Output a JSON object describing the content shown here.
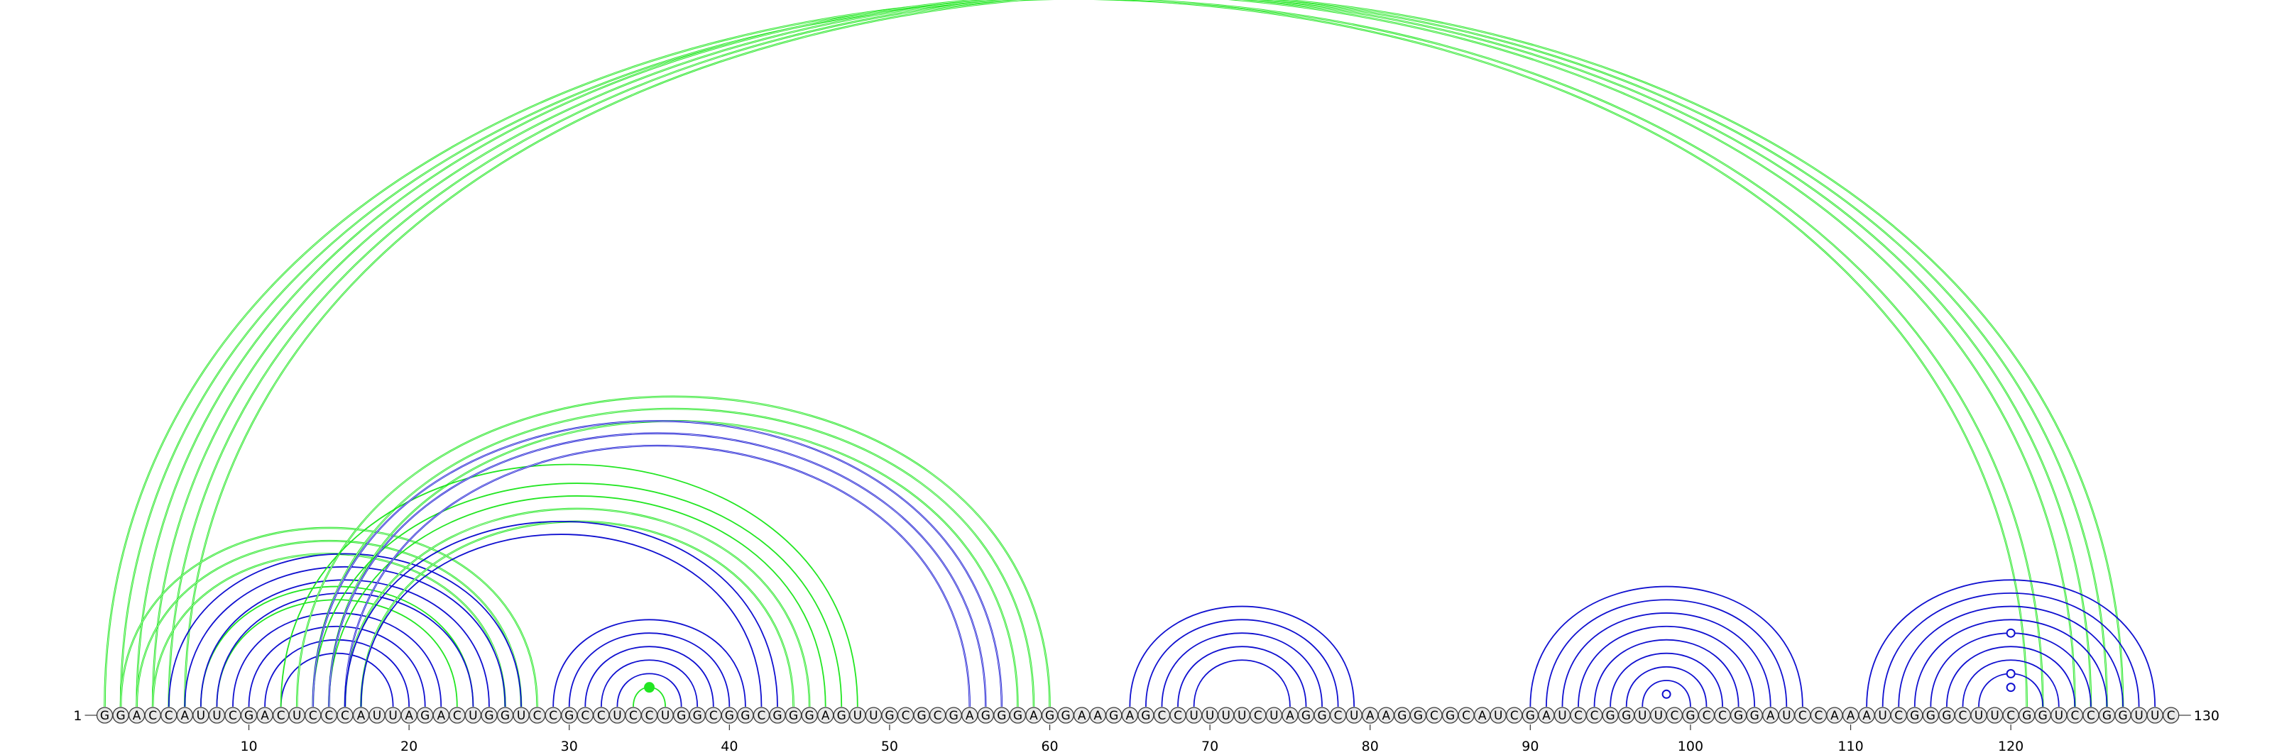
{
  "sequence": "GGACCAUUCGACUCCCAUUAGACUGGUCCGCCUCCUGGCGGCGGGAGUUGCGCGAGGGAGGAAGAGCCUUUUCUAGGCUAAGGCGCAUCGAUCCGGUUCGCCGGAUCCAAAUCGGGCUUCGGUCCGGUUC",
  "start_label": "1",
  "end_label": "130",
  "ticks": [
    "10",
    "20",
    "30",
    "40",
    "50",
    "60",
    "70",
    "80",
    "90",
    "100",
    "110",
    "120"
  ],
  "colors": {
    "green": "#22e622",
    "blue": "#1010d0"
  },
  "arc_groups": [
    {
      "color": "green",
      "stroke": 2.6,
      "pairs": [
        [
          1,
          121
        ],
        [
          2,
          122
        ],
        [
          3,
          124
        ],
        [
          4,
          125
        ],
        [
          5,
          126
        ],
        [
          6,
          127
        ]
      ]
    },
    {
      "color": "green",
      "stroke": 2.6,
      "pairs": [
        [
          2,
          28
        ],
        [
          3,
          27
        ],
        [
          4,
          26
        ]
      ]
    },
    {
      "color": "green",
      "stroke": 1.8,
      "pairs": [
        [
          7,
          24
        ],
        [
          8,
          23
        ]
      ]
    },
    {
      "color": "blue",
      "stroke": 1.8,
      "pairs": [
        [
          5,
          27
        ],
        [
          6,
          26
        ],
        [
          7,
          25
        ],
        [
          8,
          24
        ],
        [
          9,
          22
        ],
        [
          10,
          21
        ],
        [
          11,
          20
        ],
        [
          12,
          19
        ]
      ]
    },
    {
      "color": "green",
      "stroke": 2.6,
      "pairs": [
        [
          13,
          60
        ],
        [
          14,
          59
        ],
        [
          15,
          58
        ]
      ]
    },
    {
      "color": "green",
      "stroke": 1.8,
      "pairs": [
        [
          12,
          48
        ],
        [
          14,
          47
        ],
        [
          15,
          46
        ]
      ]
    },
    {
      "color": "green",
      "stroke": 2.6,
      "pairs": [
        [
          16,
          45
        ],
        [
          17,
          44
        ]
      ]
    },
    {
      "color": "blue",
      "stroke": 2.4,
      "pairs": [
        [
          14,
          57
        ],
        [
          15,
          56
        ],
        [
          16,
          55
        ]
      ]
    },
    {
      "color": "blue",
      "stroke": 1.8,
      "pairs": [
        [
          16,
          43
        ],
        [
          17,
          42
        ]
      ]
    },
    {
      "color": "blue",
      "stroke": 1.8,
      "pairs": [
        [
          29,
          41
        ],
        [
          30,
          40
        ],
        [
          31,
          39
        ],
        [
          32,
          38
        ],
        [
          33,
          37
        ]
      ]
    },
    {
      "color": "green",
      "stroke": 1.8,
      "pairs": [
        [
          34,
          36
        ]
      ]
    },
    {
      "color": "blue",
      "stroke": 1.8,
      "pairs": [
        [
          65,
          79
        ],
        [
          66,
          78
        ],
        [
          67,
          77
        ],
        [
          68,
          76
        ],
        [
          69,
          75
        ]
      ]
    },
    {
      "color": "blue",
      "stroke": 1.8,
      "pairs": [
        [
          90,
          107
        ],
        [
          91,
          106
        ],
        [
          92,
          105
        ],
        [
          93,
          104
        ],
        [
          94,
          103
        ],
        [
          95,
          102
        ],
        [
          96,
          101
        ],
        [
          97,
          100
        ]
      ]
    },
    {
      "color": "blue",
      "stroke": 1.8,
      "pairs": [
        [
          111,
          129
        ],
        [
          112,
          128
        ],
        [
          113,
          127
        ],
        [
          114,
          126
        ],
        [
          115,
          125
        ],
        [
          116,
          124
        ],
        [
          117,
          123
        ],
        [
          118,
          122
        ]
      ]
    }
  ],
  "pair_markers": [
    {
      "pair": [
        34,
        36
      ],
      "kind": "dot",
      "color": "green"
    },
    {
      "pair": [
        98,
        99
      ],
      "kind": "ring",
      "color": "blue"
    },
    {
      "pair": [
        119,
        121
      ],
      "kind": "ring",
      "color": "blue"
    },
    {
      "pair": [
        118,
        122
      ],
      "kind": "ring",
      "color": "blue"
    },
    {
      "pair": [
        115,
        125
      ],
      "kind": "ring",
      "color": "blue"
    }
  ]
}
